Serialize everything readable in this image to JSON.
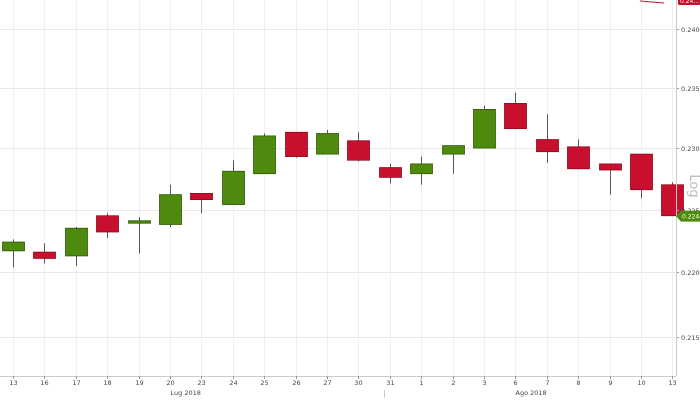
{
  "chart_data": {
    "type": "candlestick",
    "scale": "log",
    "scale_label": "Log",
    "grid": true,
    "ylim": [
      0.212,
      0.2425
    ],
    "y_ticks": [
      {
        "value": 0.24,
        "label": "0.24000"
      },
      {
        "value": 0.235,
        "label": "0.23500"
      },
      {
        "value": 0.23,
        "label": "0.23000"
      },
      {
        "value": 0.225,
        "label": "0.22500"
      },
      {
        "value": 0.22,
        "label": "0.22000"
      },
      {
        "value": 0.215,
        "label": "0.21500"
      }
    ],
    "last_price": {
      "value": 0.22447,
      "label": "0.22447"
    },
    "top_right_badge": {
      "label": "0.24..."
    },
    "month_labels": [
      {
        "label": "Lug 2018",
        "at_index": 5.5
      },
      {
        "label": "Ago 2018",
        "at_index": 16.5
      }
    ],
    "candles": [
      {
        "x": "13",
        "open": 0.2217,
        "high": 0.2226,
        "low": 0.2204,
        "close": 0.2224
      },
      {
        "x": "16",
        "open": 0.2216,
        "high": 0.2223,
        "low": 0.2207,
        "close": 0.2211
      },
      {
        "x": "17",
        "open": 0.2213,
        "high": 0.2236,
        "low": 0.2205,
        "close": 0.2235
      },
      {
        "x": "18",
        "open": 0.2245,
        "high": 0.2247,
        "low": 0.2227,
        "close": 0.2232
      },
      {
        "x": "19",
        "open": 0.2239,
        "high": 0.2244,
        "low": 0.2215,
        "close": 0.2241
      },
      {
        "x": "20",
        "open": 0.2238,
        "high": 0.227,
        "low": 0.2236,
        "close": 0.2262
      },
      {
        "x": "23",
        "open": 0.2263,
        "high": 0.2263,
        "low": 0.2247,
        "close": 0.2258
      },
      {
        "x": "24",
        "open": 0.2254,
        "high": 0.229,
        "low": 0.2254,
        "close": 0.2281
      },
      {
        "x": "25",
        "open": 0.2279,
        "high": 0.2312,
        "low": 0.2279,
        "close": 0.231
      },
      {
        "x": "26",
        "open": 0.2313,
        "high": 0.2313,
        "low": 0.2292,
        "close": 0.2293
      },
      {
        "x": "27",
        "open": 0.2295,
        "high": 0.2315,
        "low": 0.2295,
        "close": 0.2312
      },
      {
        "x": "30",
        "open": 0.2306,
        "high": 0.2313,
        "low": 0.2289,
        "close": 0.229
      },
      {
        "x": "31",
        "open": 0.2284,
        "high": 0.2287,
        "low": 0.2271,
        "close": 0.2276
      },
      {
        "x": "1",
        "open": 0.2279,
        "high": 0.2293,
        "low": 0.227,
        "close": 0.2287
      },
      {
        "x": "2",
        "open": 0.2295,
        "high": 0.2302,
        "low": 0.2279,
        "close": 0.2302
      },
      {
        "x": "3",
        "open": 0.23,
        "high": 0.2335,
        "low": 0.23,
        "close": 0.2332
      },
      {
        "x": "6",
        "open": 0.2337,
        "high": 0.2346,
        "low": 0.2316,
        "close": 0.2316
      },
      {
        "x": "7",
        "open": 0.2307,
        "high": 0.2328,
        "low": 0.2288,
        "close": 0.2297
      },
      {
        "x": "8",
        "open": 0.2301,
        "high": 0.2307,
        "low": 0.2283,
        "close": 0.2283
      },
      {
        "x": "9",
        "open": 0.2287,
        "high": 0.2287,
        "low": 0.2262,
        "close": 0.2282
      },
      {
        "x": "10",
        "open": 0.2295,
        "high": 0.2295,
        "low": 0.2259,
        "close": 0.2266
      },
      {
        "x": "13",
        "open": 0.227,
        "high": 0.2272,
        "low": 0.2245,
        "close": 0.2245
      }
    ]
  },
  "colors": {
    "up": "#4e8a0e",
    "down": "#c8102e",
    "up_stroke": "#2f5a06",
    "down_stroke": "#8e0a1f",
    "wick": "#555555",
    "grid": "#e8e8e8",
    "axis_text": "#444444",
    "last_price_bg": "#4e8a0e"
  }
}
